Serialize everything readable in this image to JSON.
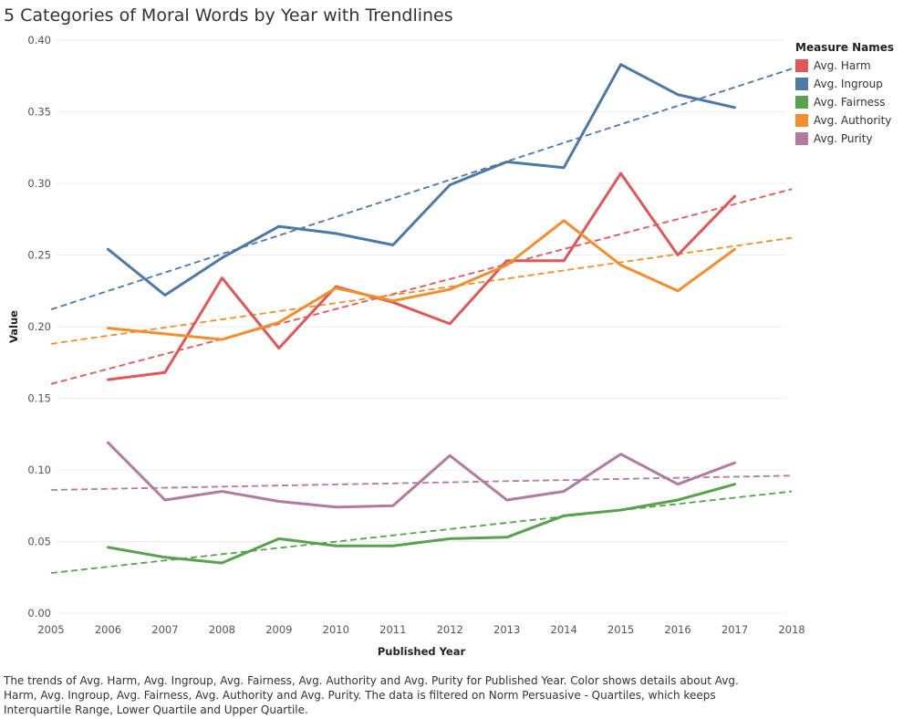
{
  "chart_data": {
    "type": "line",
    "title": "5 Categories of Moral Words by Year with Trendlines",
    "xlabel": "Published Year",
    "ylabel": "Value",
    "xlim": [
      2005,
      2018
    ],
    "ylim": [
      0,
      0.4
    ],
    "x_ticks": [
      "2005",
      "2006",
      "2007",
      "2008",
      "2009",
      "2010",
      "2011",
      "2012",
      "2013",
      "2014",
      "2015",
      "2016",
      "2017",
      "2018"
    ],
    "y_ticks": [
      "0.00",
      "0.05",
      "0.10",
      "0.15",
      "0.20",
      "0.25",
      "0.30",
      "0.35",
      "0.40"
    ],
    "grid": true,
    "legend_title": "Measure Names",
    "legend_position": "top-right",
    "x": [
      2006,
      2007,
      2008,
      2009,
      2010,
      2011,
      2012,
      2013,
      2014,
      2015,
      2016,
      2017
    ],
    "series": [
      {
        "name": "Avg. Harm",
        "color": "#e15759",
        "values": [
          0.163,
          0.168,
          0.234,
          0.185,
          0.228,
          0.217,
          0.202,
          0.246,
          0.246,
          0.307,
          0.25,
          0.291
        ],
        "trend": [
          0.16,
          0.296
        ]
      },
      {
        "name": "Avg. Ingroup",
        "color": "#4e79a7",
        "values": [
          0.254,
          0.222,
          0.248,
          0.27,
          0.265,
          0.257,
          0.299,
          0.315,
          0.311,
          0.383,
          0.362,
          0.353
        ],
        "trend": [
          0.212,
          0.38
        ]
      },
      {
        "name": "Avg. Fairness",
        "color": "#59a14f",
        "values": [
          0.046,
          0.039,
          0.035,
          0.052,
          0.047,
          0.047,
          0.052,
          0.053,
          0.068,
          0.072,
          0.079,
          0.09
        ],
        "trend": [
          0.028,
          0.085
        ]
      },
      {
        "name": "Avg. Authority",
        "color": "#f28e2b",
        "values": [
          0.199,
          0.195,
          0.191,
          0.203,
          0.227,
          0.218,
          0.226,
          0.243,
          0.274,
          0.243,
          0.225,
          0.254
        ],
        "trend": [
          0.188,
          0.262
        ]
      },
      {
        "name": "Avg. Purity",
        "color": "#b07aa1",
        "values": [
          0.119,
          0.079,
          0.085,
          0.078,
          0.074,
          0.075,
          0.11,
          0.079,
          0.085,
          0.111,
          0.09,
          0.105
        ],
        "trend": [
          0.086,
          0.096
        ]
      }
    ]
  },
  "caption": "The trends of Avg. Harm, Avg. Ingroup, Avg. Fairness, Avg. Authority and Avg. Purity for Published Year.  Color shows details about Avg. Harm, Avg. Ingroup, Avg. Fairness, Avg. Authority and Avg. Purity. The data is filtered on Norm Persuasive - Quartiles, which keeps Interquartile Range, Lower Quartile and Upper Quartile."
}
